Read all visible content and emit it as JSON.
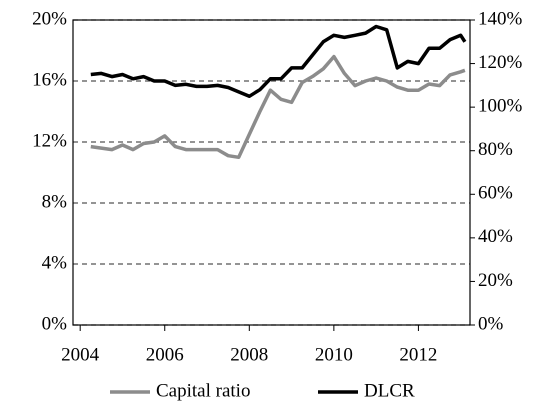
{
  "chart_data": {
    "type": "line",
    "x": [
      2004.25,
      2004.5,
      2004.75,
      2005,
      2005.25,
      2005.5,
      2005.75,
      2006,
      2006.25,
      2006.5,
      2006.75,
      2007,
      2007.25,
      2007.5,
      2007.75,
      2008,
      2008.25,
      2008.5,
      2008.75,
      2009,
      2009.25,
      2009.5,
      2009.75,
      2010,
      2010.25,
      2010.5,
      2010.75,
      2011,
      2011.25,
      2011.5,
      2011.75,
      2012,
      2012.25,
      2012.5,
      2012.75,
      2013,
      2013.1
    ],
    "series": [
      {
        "name": "Capital ratio",
        "color": "#8c8c8c",
        "values": [
          11.7,
          11.6,
          11.5,
          11.8,
          11.5,
          11.9,
          12.0,
          12.4,
          11.7,
          11.5,
          11.5,
          11.5,
          11.5,
          11.1,
          11.0,
          12.5,
          14.0,
          15.4,
          14.8,
          14.6,
          15.9,
          16.3,
          16.8,
          17.6,
          16.5,
          15.7,
          16.0,
          16.2,
          16.0,
          15.6,
          15.4,
          15.4,
          15.8,
          15.7,
          16.4,
          16.6,
          16.7
        ]
      },
      {
        "name": "DLCR",
        "color": "#000000",
        "axis": "y2",
        "values": [
          115,
          115.5,
          114,
          115,
          113,
          114,
          112,
          112,
          110,
          110.5,
          109.5,
          109.5,
          110,
          109,
          107,
          105,
          108,
          113,
          113,
          118,
          118,
          124,
          130,
          133,
          132,
          133,
          134,
          137,
          135.5,
          118,
          121,
          120,
          127,
          127,
          131,
          133,
          130
        ]
      }
    ],
    "xlim": [
      2003.83,
      2013.22
    ],
    "xticks": [
      2004,
      2006,
      2008,
      2010,
      2012
    ],
    "ylim": [
      0,
      20
    ],
    "yticks": [
      {
        "value": 0,
        "label": "0%"
      },
      {
        "value": 4,
        "label": "4%"
      },
      {
        "value": 8,
        "label": "8%"
      },
      {
        "value": 12,
        "label": "12%"
      },
      {
        "value": 16,
        "label": "16%"
      },
      {
        "value": 20,
        "label": "20%"
      }
    ],
    "y2lim": [
      0,
      140
    ],
    "y2ticks": [
      {
        "value": 0,
        "label": "0%"
      },
      {
        "value": 20,
        "label": "20%"
      },
      {
        "value": 40,
        "label": "40%"
      },
      {
        "value": 60,
        "label": "60%"
      },
      {
        "value": 80,
        "label": "80%"
      },
      {
        "value": 100,
        "label": "100%"
      },
      {
        "value": 120,
        "label": "120%"
      },
      {
        "value": 140,
        "label": "140%"
      }
    ],
    "grid": true,
    "legend": "bottom"
  }
}
